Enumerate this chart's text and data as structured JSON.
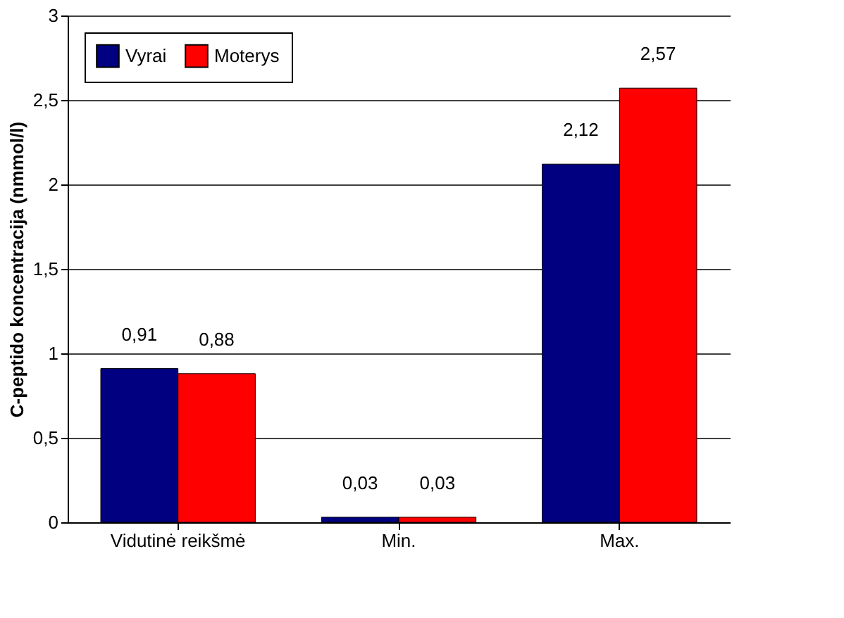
{
  "chart_data": {
    "type": "bar",
    "ylabel": "C-peptido koncentracija (nmmol/l)",
    "categories": [
      "Vidutinė reikšmė",
      "Min.",
      "Max."
    ],
    "series": [
      {
        "name": "Vyrai",
        "color": "#000080",
        "values": [
          0.91,
          0.03,
          2.12
        ],
        "value_labels": [
          "0,91",
          "0,03",
          "2,12"
        ]
      },
      {
        "name": "Moterys",
        "color": "#ff0000",
        "values": [
          0.88,
          0.03,
          2.57
        ],
        "value_labels": [
          "0,88",
          "0,03",
          "2,57"
        ]
      }
    ],
    "ylim": [
      0,
      3
    ],
    "yticks": [
      0,
      {
        "value": 0.5,
        "label": "0,5"
      },
      1,
      {
        "value": 1.5,
        "label": "1,5"
      },
      2,
      {
        "value": 2.5,
        "label": "2,5"
      },
      3
    ],
    "grid": "y",
    "legend": "top left"
  }
}
